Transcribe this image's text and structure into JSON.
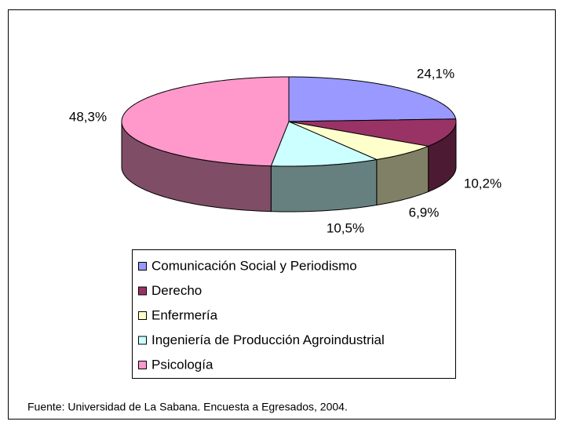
{
  "chart_data": {
    "type": "pie3d",
    "categories": [
      "Comunicación Social y Periodismo",
      "Derecho",
      "Enfermería",
      "Ingeniería de Producción Agroindustrial",
      "Psicología"
    ],
    "values": [
      24.1,
      10.2,
      6.9,
      10.5,
      48.3
    ],
    "value_labels": [
      "24,1%",
      "10,2%",
      "6,9%",
      "10,5%",
      "48,3%"
    ],
    "colors": [
      "#9999ff",
      "#993366",
      "#ffffcc",
      "#ccffff",
      "#ff99cc"
    ],
    "legend": "bottom",
    "source": "Fuente: Universidad de La Sabana. Encuesta a Egresados, 2004."
  }
}
